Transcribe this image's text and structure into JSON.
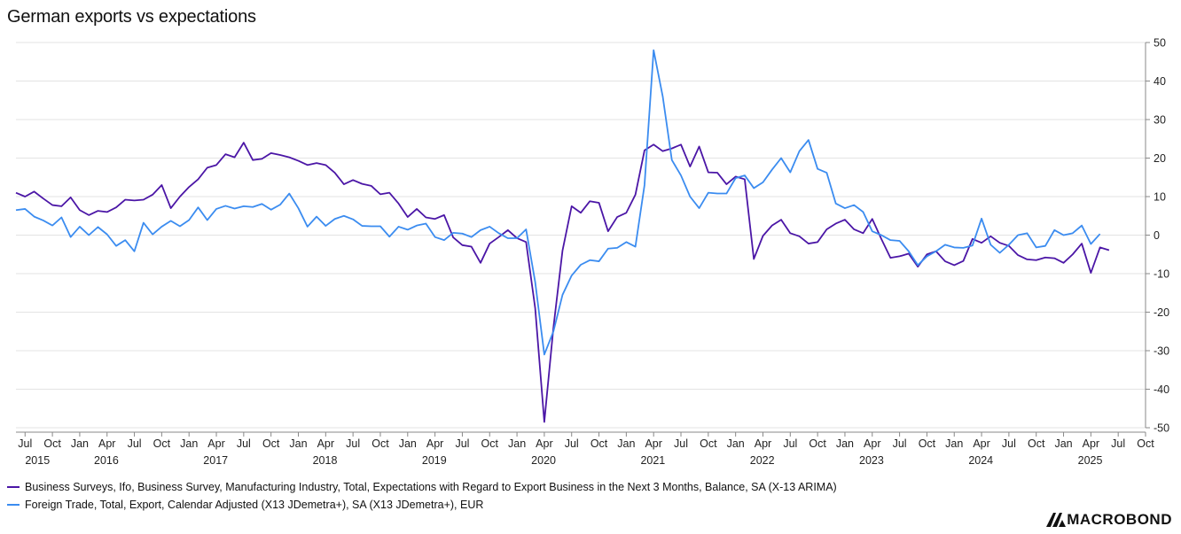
{
  "title": "German exports vs expectations",
  "logo_text": "MACROBOND",
  "chart_data": {
    "type": "line",
    "ylim": [
      -50,
      50
    ],
    "y_ticks": [
      50,
      40,
      30,
      20,
      10,
      0,
      -10,
      -20,
      -30,
      -40,
      -50
    ],
    "x_start": "2015-06",
    "x_end": "2025-10",
    "month_ticks": [
      "Jul",
      "Oct",
      "Jan",
      "Apr",
      "Jul",
      "Oct",
      "Jan",
      "Apr",
      "Jul",
      "Oct",
      "Jan",
      "Apr",
      "Jul",
      "Oct",
      "Jan",
      "Apr",
      "Jul",
      "Oct",
      "Jan",
      "Apr",
      "Jul",
      "Oct",
      "Jan",
      "Apr",
      "Jul",
      "Oct",
      "Jan",
      "Apr",
      "Jul",
      "Oct",
      "Jan",
      "Apr",
      "Jul",
      "Oct",
      "Jan",
      "Apr",
      "Jul",
      "Oct",
      "Jan",
      "Apr",
      "Jul",
      "Oct"
    ],
    "year_labels": [
      "2015",
      "2016",
      "2017",
      "2018",
      "2019",
      "2020",
      "2021",
      "2022",
      "2023",
      "2024",
      "2025"
    ],
    "grid": true,
    "legend_position": "bottom",
    "series": [
      {
        "name": "Business Surveys, Ifo, Business Survey, Manufacturing Industry, Total, Expectations with Regard to Export Business in the Next 3 Months, Balance, SA (X-13 ARIMA)",
        "color": "#4b16a6",
        "start": "2015-06",
        "values": [
          11,
          10,
          11.3,
          9.5,
          7.8,
          7.5,
          9.8,
          6.5,
          5.2,
          6.3,
          6,
          7.2,
          9.2,
          9,
          9.2,
          10.5,
          13,
          7,
          10,
          12.5,
          14.5,
          17.5,
          18.2,
          21,
          20.2,
          24,
          19.5,
          19.8,
          21.3,
          20.8,
          20.2,
          19.3,
          18.2,
          18.7,
          18.2,
          16.2,
          13.2,
          14.3,
          13.3,
          12.8,
          10.6,
          11,
          8.2,
          4.7,
          6.8,
          4.6,
          4.2,
          5.2,
          -0.6,
          -2.6,
          -3,
          -7.2,
          -2.2,
          -0.5,
          1.3,
          -0.8,
          -1.8,
          -19,
          -48.5,
          -24,
          -4,
          7.5,
          5.8,
          8.8,
          8.4,
          1,
          4.7,
          5.8,
          10.5,
          22,
          23.5,
          21.8,
          22.5,
          23.5,
          17.8,
          23,
          16.3,
          16.2,
          13.2,
          15.2,
          14.5,
          -6.2,
          -0.2,
          2.5,
          4,
          0.5,
          -0.3,
          -2.2,
          -1.8,
          1.5,
          3,
          4,
          1.5,
          0.5,
          4.2,
          -1,
          -5.9,
          -5.5,
          -4.8,
          -8.2,
          -5,
          -4.2,
          -6.8,
          -7.8,
          -6.7,
          -1,
          -2,
          -0.3,
          -2,
          -2.8,
          -5.2,
          -6.3,
          -6.5,
          -5.8,
          -6,
          -7.2,
          -5,
          -2.2,
          -9.8,
          -3.2,
          -3.9
        ]
      },
      {
        "name": "Foreign Trade, Total, Export, Calendar Adjusted (X13 JDemetra+), SA (X13 JDemetra+), EUR",
        "color": "#3b8cf0",
        "start": "2015-06",
        "values": [
          6.5,
          6.8,
          4.8,
          3.8,
          2.5,
          4.6,
          -0.5,
          2.2,
          0,
          2.1,
          0.2,
          -2.8,
          -1.3,
          -4.2,
          3.2,
          0.2,
          2.2,
          3.7,
          2.3,
          3.9,
          7.2,
          3.9,
          6.8,
          7.6,
          6.9,
          7.5,
          7.3,
          8.1,
          6.6,
          7.9,
          10.8,
          7,
          2.2,
          4.8,
          2.4,
          4.2,
          5,
          4.1,
          2.4,
          2.3,
          2.3,
          -0.4,
          2.2,
          1.4,
          2.5,
          3,
          -0.5,
          -1.3,
          0.6,
          0.4,
          -0.5,
          1.3,
          2.2,
          0.5,
          -0.8,
          -0.8,
          1.5,
          -12.2,
          -31,
          -25,
          -15.5,
          -10.5,
          -7.7,
          -6.5,
          -6.8,
          -3.5,
          -3.3,
          -1.8,
          -3,
          13,
          48,
          36,
          19.5,
          15.5,
          10,
          7,
          11,
          10.8,
          10.8,
          14.8,
          15.5,
          12.2,
          13.7,
          17,
          20,
          16.3,
          21.8,
          24.7,
          17.2,
          16.2,
          8.2,
          7,
          7.8,
          6,
          1,
          0,
          -1.3,
          -1.5,
          -4.2,
          -7.8,
          -5.5,
          -4.2,
          -2.5,
          -3.2,
          -3.3,
          -2.7,
          4.3,
          -2.5,
          -4.6,
          -2.5,
          0,
          0.5,
          -3.2,
          -2.8,
          1.3,
          0,
          0.5,
          2.5,
          -2.3,
          0.3
        ]
      }
    ]
  }
}
